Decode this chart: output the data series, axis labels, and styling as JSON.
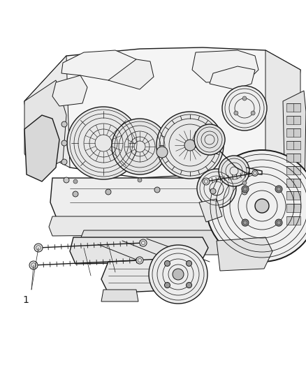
{
  "bg_color": "#ffffff",
  "line_color": "#1a1a1a",
  "fig_width": 4.38,
  "fig_height": 5.33,
  "dpi": 100,
  "label_number": "1",
  "label_fontsize": 10
}
